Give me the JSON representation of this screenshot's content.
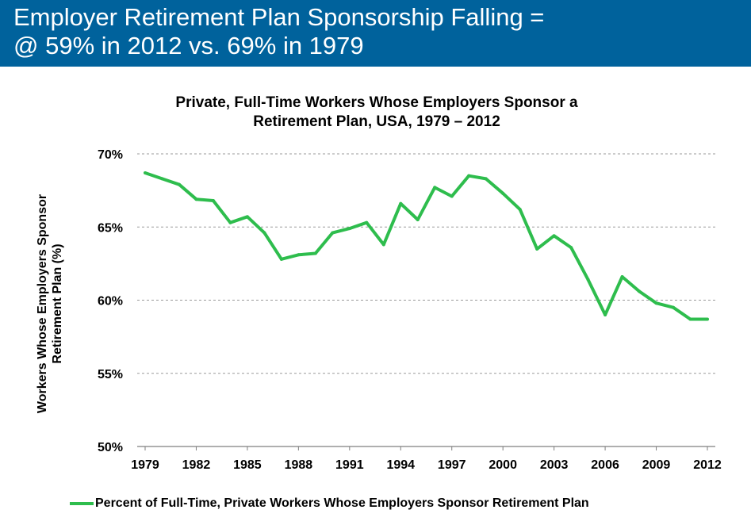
{
  "slide": {
    "title_line1": "Employer Retirement Plan Sponsorship Falling =",
    "title_line2": "@ 59% in 2012 vs. 69% in 1979",
    "header_color": "#00629c"
  },
  "chart_data": {
    "type": "line",
    "title_line1": "Private, Full-Time Workers Whose Employers Sponsor a",
    "title_line2": "Retirement Plan, USA, 1979 – 2012",
    "ylabel_line1": "Workers Whose Employers Sponsor",
    "ylabel_line2": "Retirement Plan (%)",
    "xlabel": "",
    "ylim": [
      50,
      70
    ],
    "xlim": [
      1979,
      2012
    ],
    "y_ticks": [
      {
        "value": 50,
        "label": "50%"
      },
      {
        "value": 55,
        "label": "55%"
      },
      {
        "value": 60,
        "label": "60%"
      },
      {
        "value": 65,
        "label": "65%"
      },
      {
        "value": 70,
        "label": "70%"
      }
    ],
    "x_ticks": [
      "1979",
      "1982",
      "1985",
      "1988",
      "1991",
      "1994",
      "1997",
      "2000",
      "2003",
      "2006",
      "2009",
      "2012"
    ],
    "grid": true,
    "legend_position": "bottom",
    "series": [
      {
        "name": "Percent of Full-Time, Private Workers Whose Employers Sponsor Retirement Plan",
        "color": "#2ebd4d",
        "x": [
          1979,
          1980,
          1981,
          1982,
          1983,
          1984,
          1985,
          1986,
          1987,
          1988,
          1989,
          1990,
          1991,
          1992,
          1993,
          1994,
          1995,
          1996,
          1997,
          1998,
          1999,
          2000,
          2001,
          2002,
          2003,
          2004,
          2005,
          2006,
          2007,
          2008,
          2009,
          2010,
          2011,
          2012
        ],
        "values": [
          68.7,
          68.3,
          67.9,
          66.9,
          66.8,
          65.3,
          65.7,
          64.6,
          62.8,
          63.1,
          63.2,
          64.6,
          64.9,
          65.3,
          63.8,
          66.6,
          65.5,
          67.7,
          67.1,
          68.5,
          68.3,
          67.3,
          66.2,
          63.5,
          64.4,
          63.6,
          61.4,
          59.0,
          61.6,
          60.6,
          59.8,
          59.5,
          58.7,
          58.7
        ]
      }
    ]
  }
}
